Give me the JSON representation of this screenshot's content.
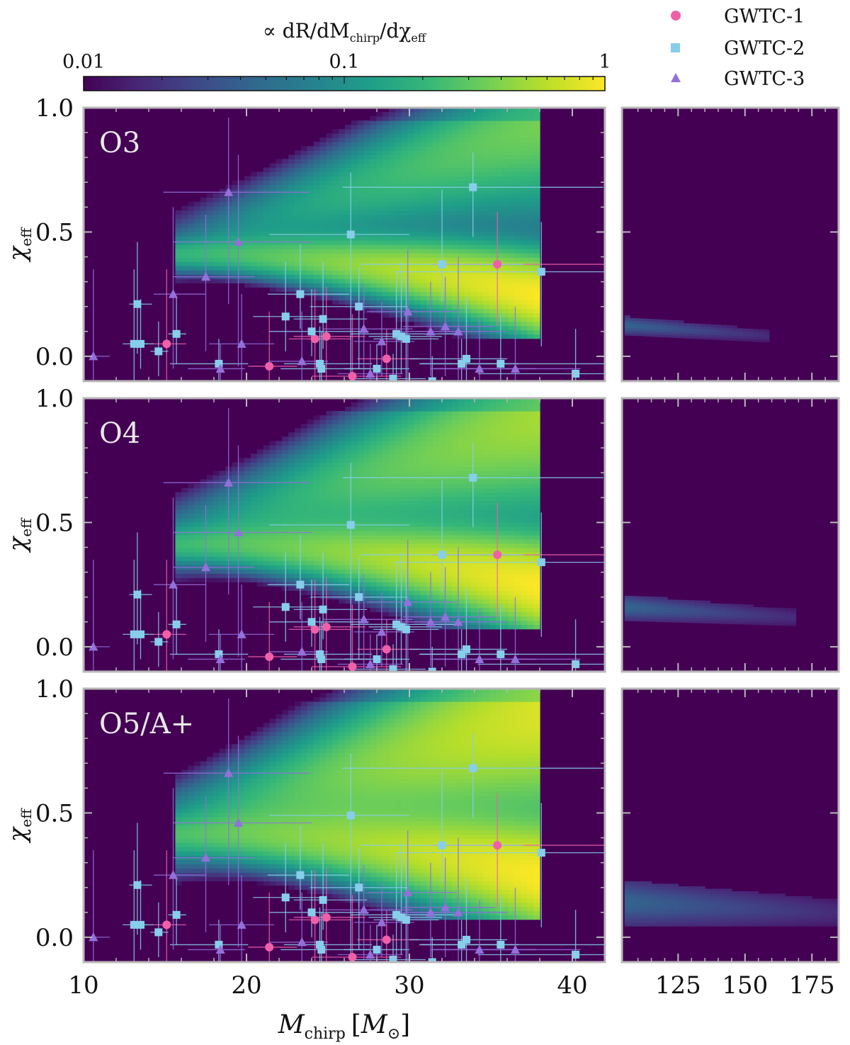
{
  "colors": {
    "background": "#440154",
    "frame": "#b8b8b8",
    "GWTC-1": "#f060a8",
    "GWTC-2": "#87ceeb",
    "GWTC-3": "#9370db",
    "viridis": [
      "#440154",
      "#482878",
      "#3e4989",
      "#31688e",
      "#26828e",
      "#1f9e89",
      "#35b779",
      "#6ece58",
      "#b5de2b",
      "#fde725"
    ]
  },
  "colorbar": {
    "label": "∝ dR/dMchirp/dχeff",
    "label_main": "∝ dR/dM",
    "label_sub1": "chirp",
    "label_mid": "/dχ",
    "label_sub2": "eff",
    "ticks": [
      "0.01",
      "0.1",
      "1"
    ],
    "range": [
      0.01,
      1
    ],
    "scale": "log"
  },
  "legend": {
    "placement": "top-right",
    "entries": [
      {
        "label": "GWTC-1",
        "marker": "circle"
      },
      {
        "label": "GWTC-2",
        "marker": "square"
      },
      {
        "label": "GWTC-3",
        "marker": "triangle"
      }
    ]
  },
  "axes": {
    "xlabel": "Mchirp [M⊙]",
    "xlabel_main": "M",
    "xlabel_sub": "chirp",
    "xlabel_unit_open": "[",
    "xlabel_unit": "M",
    "xlabel_unit_sub": "⊙",
    "xlabel_unit_close": "]",
    "ylabel": "χeff",
    "ylabel_main": "χ",
    "ylabel_sub": "eff",
    "left_xlim": [
      10,
      42
    ],
    "left_xticks": [
      "10",
      "20",
      "30",
      "40"
    ],
    "right_xlim": [
      104,
      185
    ],
    "right_xticks": [
      "125",
      "150",
      "175"
    ],
    "ylim": [
      -0.1,
      1.0
    ],
    "yticks": [
      "0.0",
      "0.5",
      "1.0"
    ]
  },
  "chart_data": [
    {
      "type": "heatmap",
      "panel": "O3",
      "title": "O3",
      "density_field": {
        "main_spread": 0.06,
        "upper_spread": 0.14,
        "upper_weight": 0.32,
        "right_tail_band_y": [
          0.1,
          0.15
        ],
        "right_tail_extent": 158
      }
    },
    {
      "type": "heatmap",
      "panel": "O4",
      "title": "O4",
      "density_field": {
        "main_spread": 0.07,
        "upper_spread": 0.17,
        "upper_weight": 0.45,
        "right_tail_band_y": [
          0.12,
          0.2
        ],
        "right_tail_extent": 168
      }
    },
    {
      "type": "heatmap",
      "panel": "O5/A+",
      "title": "O5/A+",
      "density_field": {
        "main_spread": 0.08,
        "upper_spread": 0.2,
        "upper_weight": 0.65,
        "right_tail_band_y": [
          0.06,
          0.22
        ],
        "right_tail_extent": 185
      }
    },
    {
      "type": "scatter",
      "panel": "events (shown in all three panels)",
      "series": [
        {
          "name": "GWTC-1",
          "points": [
            {
              "x": 15.1,
              "y": 0.05,
              "xerr": [
                1.0,
                1.2
              ],
              "yerr": [
                0.15,
                0.3
              ]
            },
            {
              "x": 21.4,
              "y": -0.04,
              "xerr": [
                1.3,
                1.7
              ],
              "yerr": [
                0.2,
                0.22
              ]
            },
            {
              "x": 24.2,
              "y": 0.07,
              "xerr": [
                1.6,
                2.2
              ],
              "yerr": [
                0.18,
                0.2
              ]
            },
            {
              "x": 24.9,
              "y": 0.08,
              "xerr": [
                2.0,
                2.4
              ],
              "yerr": [
                0.2,
                0.2
              ]
            },
            {
              "x": 26.5,
              "y": -0.08,
              "xerr": [
                2.5,
                3.0
              ],
              "yerr": [
                0.2,
                0.25
              ]
            },
            {
              "x": 28.6,
              "y": -0.01,
              "xerr": [
                1.8,
                2.0
              ],
              "yerr": [
                0.16,
                0.12
              ]
            },
            {
              "x": 35.4,
              "y": 0.37,
              "xerr": [
                4.0,
                7.0
              ],
              "yerr": [
                0.25,
                0.21
              ]
            }
          ]
        },
        {
          "name": "GWTC-2",
          "points": [
            {
              "x": 13.1,
              "y": 0.05,
              "xerr": [
                0.7,
                0.9
              ],
              "yerr": [
                0.3,
                0.3
              ]
            },
            {
              "x": 13.3,
              "y": 0.21,
              "xerr": [
                0.5,
                0.9
              ],
              "yerr": [
                0.2,
                0.25
              ]
            },
            {
              "x": 13.5,
              "y": 0.05,
              "xerr": [
                0.6,
                0.8
              ],
              "yerr": [
                0.1,
                0.18
              ]
            },
            {
              "x": 14.6,
              "y": 0.02,
              "xerr": [
                0.5,
                0.6
              ],
              "yerr": [
                0.1,
                0.12
              ]
            },
            {
              "x": 15.7,
              "y": 0.09,
              "xerr": [
                0.5,
                0.6
              ],
              "yerr": [
                0.12,
                0.15
              ]
            },
            {
              "x": 18.3,
              "y": -0.03,
              "xerr": [
                3.0,
                1.8
              ],
              "yerr": [
                0.12,
                0.1
              ]
            },
            {
              "x": 22.4,
              "y": 0.16,
              "xerr": [
                2.0,
                2.4
              ],
              "yerr": [
                0.14,
                0.22
              ]
            },
            {
              "x": 23.3,
              "y": 0.25,
              "xerr": [
                2.0,
                3.0
              ],
              "yerr": [
                0.14,
                0.2
              ]
            },
            {
              "x": 24.0,
              "y": 0.1,
              "xerr": [
                2.6,
                3.5
              ],
              "yerr": [
                0.1,
                0.17
              ]
            },
            {
              "x": 24.5,
              "y": -0.03,
              "xerr": [
                2.2,
                3.2
              ],
              "yerr": [
                0.2,
                0.15
              ]
            },
            {
              "x": 24.6,
              "y": -0.05,
              "xerr": [
                2.5,
                3.0
              ],
              "yerr": [
                0.2,
                0.15
              ]
            },
            {
              "x": 24.7,
              "y": 0.15,
              "xerr": [
                1.8,
                2.7
              ],
              "yerr": [
                0.12,
                0.23
              ]
            },
            {
              "x": 26.4,
              "y": 0.49,
              "xerr": [
                5.0,
                3.6
              ],
              "yerr": [
                0.6,
                0.25
              ]
            },
            {
              "x": 26.9,
              "y": 0.2,
              "xerr": [
                3.0,
                3.0
              ],
              "yerr": [
                0.25,
                0.16
              ]
            },
            {
              "x": 28.0,
              "y": -0.05,
              "xerr": [
                2.0,
                2.0
              ],
              "yerr": [
                0.12,
                0.1
              ]
            },
            {
              "x": 29.0,
              "y": -0.09,
              "xerr": [
                2.5,
                2.0
              ],
              "yerr": [
                0.2,
                0.1
              ]
            },
            {
              "x": 29.2,
              "y": 0.09,
              "xerr": [
                2.8,
                3.6
              ],
              "yerr": [
                0.2,
                0.25
              ]
            },
            {
              "x": 29.5,
              "y": 0.08,
              "xerr": [
                2.0,
                2.5
              ],
              "yerr": [
                0.15,
                0.3
              ]
            },
            {
              "x": 29.8,
              "y": 0.07,
              "xerr": [
                2.0,
                2.0
              ],
              "yerr": [
                0.2,
                0.25
              ]
            },
            {
              "x": 31.4,
              "y": -0.1,
              "xerr": [
                4.0,
                2.5
              ],
              "yerr": [
                0.1,
                0.1
              ]
            },
            {
              "x": 32.0,
              "y": 0.37,
              "xerr": [
                5.0,
                5.0
              ],
              "yerr": [
                0.15,
                0.3
              ]
            },
            {
              "x": 33.2,
              "y": -0.03,
              "xerr": [
                2.5,
                3.5
              ],
              "yerr": [
                0.1,
                0.1
              ]
            },
            {
              "x": 33.5,
              "y": -0.01,
              "xerr": [
                3.5,
                2.5
              ],
              "yerr": [
                0.2,
                0.25
              ]
            },
            {
              "x": 33.9,
              "y": 0.68,
              "xerr": [
                8.0,
                8.0
              ],
              "yerr": [
                0.2,
                0.14
              ]
            },
            {
              "x": 35.6,
              "y": -0.03,
              "xerr": [
                5.0,
                8.0
              ],
              "yerr": [
                0.18,
                0.2
              ]
            },
            {
              "x": 38.1,
              "y": 0.34,
              "xerr": [
                9.0,
                5.0
              ],
              "yerr": [
                0.3,
                0.2
              ]
            },
            {
              "x": 40.2,
              "y": -0.07,
              "xerr": [
                6.0,
                5.5
              ],
              "yerr": [
                0.2,
                0.18
              ]
            }
          ]
        },
        {
          "name": "GWTC-3",
          "points": [
            {
              "x": 10.6,
              "y": 0.0,
              "xerr": [
                0.6,
                1.0
              ],
              "yerr": [
                0.1,
                0.35
              ]
            },
            {
              "x": 15.5,
              "y": 0.25,
              "xerr": [
                1.2,
                2.0
              ],
              "yerr": [
                0.3,
                0.35
              ]
            },
            {
              "x": 17.5,
              "y": 0.32,
              "xerr": [
                2.0,
                3.0
              ],
              "yerr": [
                0.3,
                0.25
              ]
            },
            {
              "x": 18.4,
              "y": -0.05,
              "xerr": [
                2.0,
                1.5
              ],
              "yerr": [
                0.12,
                0.1
              ]
            },
            {
              "x": 18.9,
              "y": 0.66,
              "xerr": [
                4.0,
                5.0
              ],
              "yerr": [
                0.45,
                0.3
              ]
            },
            {
              "x": 19.5,
              "y": 0.46,
              "xerr": [
                4.0,
                4.5
              ],
              "yerr": [
                0.5,
                0.35
              ]
            },
            {
              "x": 19.7,
              "y": 0.05,
              "xerr": [
                2.0,
                2.0
              ],
              "yerr": [
                0.18,
                0.2
              ]
            },
            {
              "x": 23.4,
              "y": -0.02,
              "xerr": [
                2.0,
                1.6
              ],
              "yerr": [
                0.1,
                0.2
              ]
            },
            {
              "x": 27.2,
              "y": 0.11,
              "xerr": [
                2.5,
                3.0
              ],
              "yerr": [
                0.2,
                0.18
              ]
            },
            {
              "x": 27.6,
              "y": -0.07,
              "xerr": [
                2.0,
                2.0
              ],
              "yerr": [
                0.15,
                0.12
              ]
            },
            {
              "x": 28.3,
              "y": 0.06,
              "xerr": [
                1.7,
                2.0
              ],
              "yerr": [
                0.14,
                0.16
              ]
            },
            {
              "x": 29.9,
              "y": 0.18,
              "xerr": [
                2.5,
                3.0
              ],
              "yerr": [
                0.3,
                0.25
              ]
            },
            {
              "x": 31.3,
              "y": 0.1,
              "xerr": [
                2.0,
                2.2
              ],
              "yerr": [
                0.18,
                0.2
              ]
            },
            {
              "x": 32.2,
              "y": 0.12,
              "xerr": [
                2.6,
                3.0
              ],
              "yerr": [
                0.2,
                0.2
              ]
            },
            {
              "x": 33.0,
              "y": 0.1,
              "xerr": [
                3.0,
                3.0
              ],
              "yerr": [
                0.25,
                0.3
              ]
            },
            {
              "x": 34.3,
              "y": -0.05,
              "xerr": [
                3.0,
                3.5
              ],
              "yerr": [
                0.2,
                0.2
              ]
            },
            {
              "x": 36.5,
              "y": -0.05,
              "xerr": [
                5.0,
                4.0
              ],
              "yerr": [
                0.2,
                0.25
              ]
            }
          ]
        }
      ]
    }
  ]
}
